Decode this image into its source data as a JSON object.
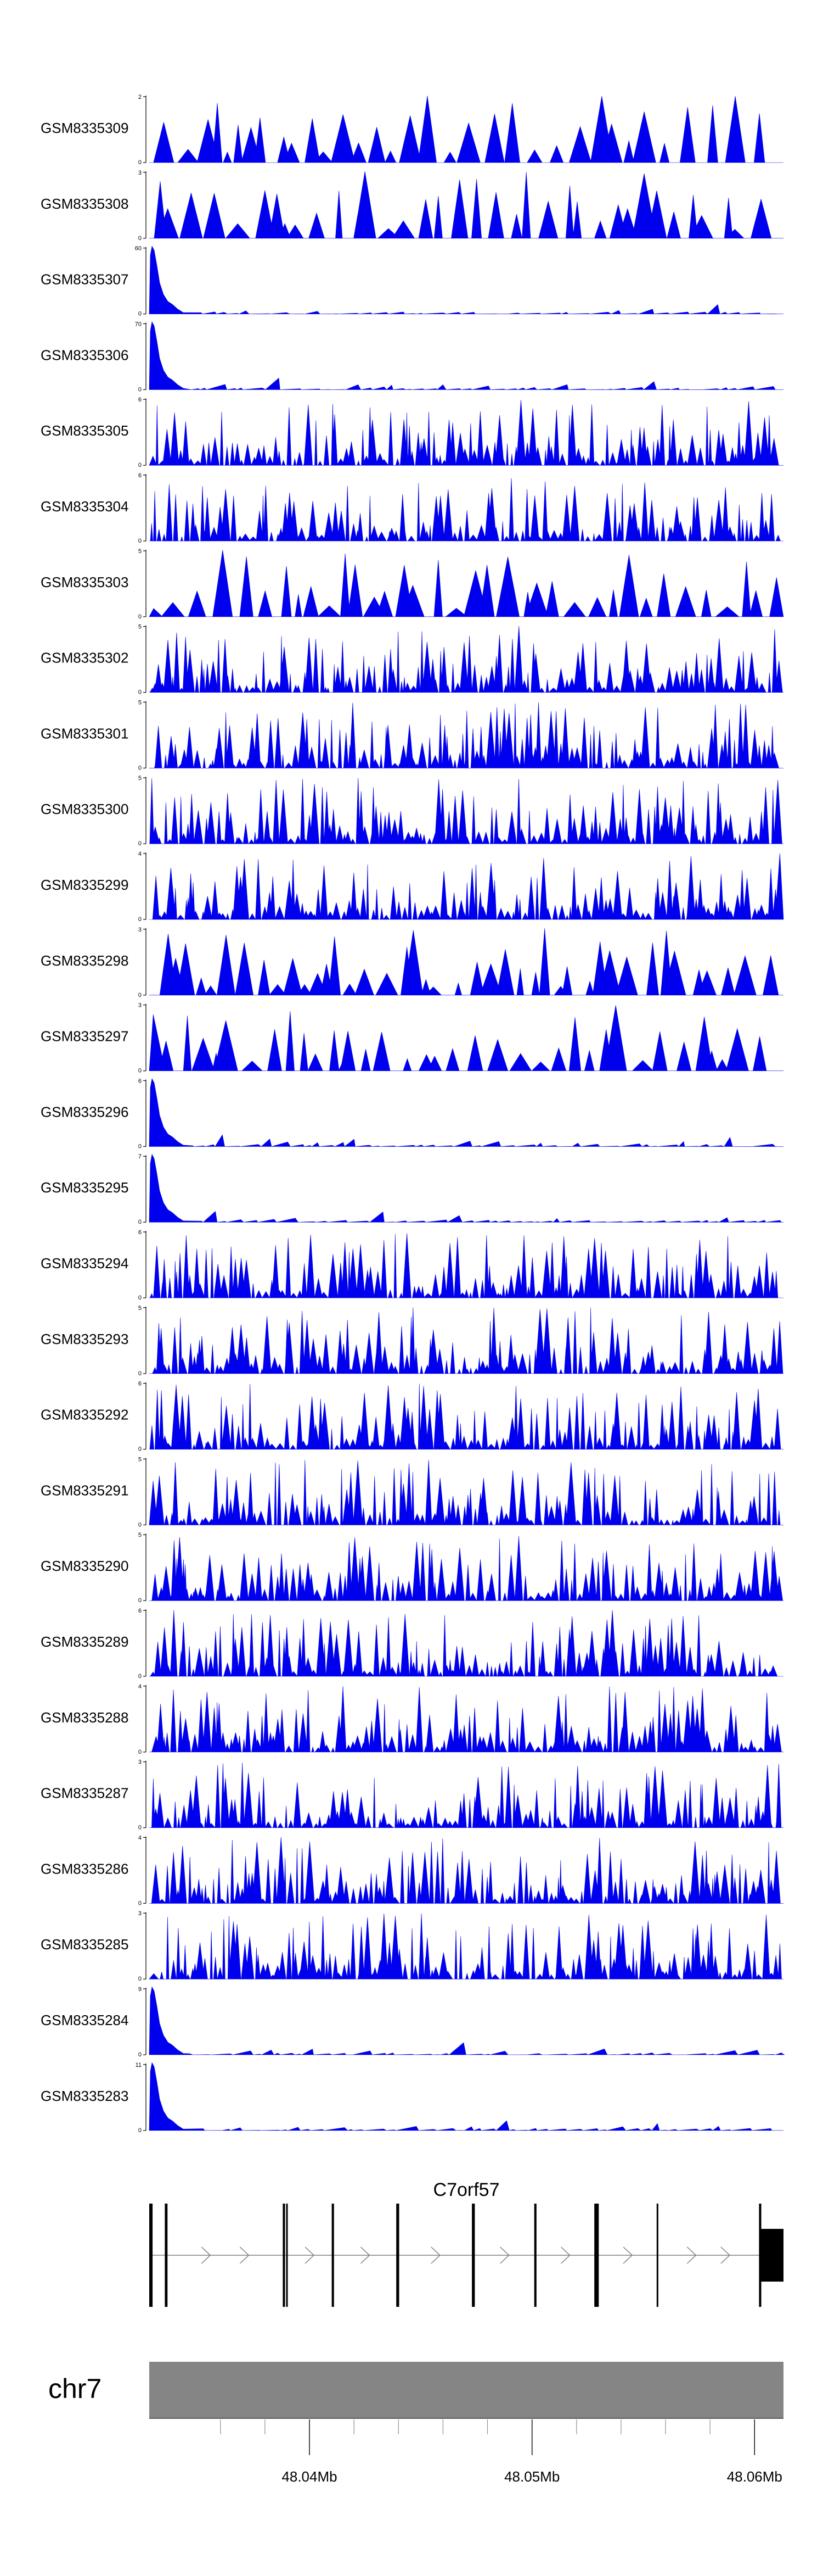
{
  "chart_data": {
    "type": "area",
    "title": "",
    "colors": {
      "signal": "#0000ee",
      "ideogram": "#858585",
      "axis": "#000000"
    },
    "tracks": [
      {
        "name": "GSM8335309",
        "ymax": 2,
        "ymin": 0,
        "pattern": "sparse"
      },
      {
        "name": "GSM8335308",
        "ymax": 3,
        "ymin": 0,
        "pattern": "sparse"
      },
      {
        "name": "GSM8335307",
        "ymax": 60,
        "ymin": 0,
        "pattern": "promoter"
      },
      {
        "name": "GSM8335306",
        "ymax": 70,
        "ymin": 0,
        "pattern": "promoter"
      },
      {
        "name": "GSM8335305",
        "ymax": 6,
        "ymin": 0,
        "pattern": "dense"
      },
      {
        "name": "GSM8335304",
        "ymax": 6,
        "ymin": 0,
        "pattern": "dense"
      },
      {
        "name": "GSM8335303",
        "ymax": 5,
        "ymin": 0,
        "pattern": "sparse"
      },
      {
        "name": "GSM8335302",
        "ymax": 5,
        "ymin": 0,
        "pattern": "dense"
      },
      {
        "name": "GSM8335301",
        "ymax": 5,
        "ymin": 0,
        "pattern": "dense"
      },
      {
        "name": "GSM8335300",
        "ymax": 5,
        "ymin": 0,
        "pattern": "dense"
      },
      {
        "name": "GSM8335299",
        "ymax": 4,
        "ymin": 0,
        "pattern": "dense"
      },
      {
        "name": "GSM8335298",
        "ymax": 3,
        "ymin": 0,
        "pattern": "sparse"
      },
      {
        "name": "GSM8335297",
        "ymax": 3,
        "ymin": 0,
        "pattern": "sparse"
      },
      {
        "name": "GSM8335296",
        "ymax": 6,
        "ymin": 0,
        "pattern": "promoter"
      },
      {
        "name": "GSM8335295",
        "ymax": 7,
        "ymin": 0,
        "pattern": "promoter"
      },
      {
        "name": "GSM8335294",
        "ymax": 6,
        "ymin": 0,
        "pattern": "dense"
      },
      {
        "name": "GSM8335293",
        "ymax": 5,
        "ymin": 0,
        "pattern": "dense"
      },
      {
        "name": "GSM8335292",
        "ymax": 6,
        "ymin": 0,
        "pattern": "dense"
      },
      {
        "name": "GSM8335291",
        "ymax": 5,
        "ymin": 0,
        "pattern": "dense"
      },
      {
        "name": "GSM8335290",
        "ymax": 5,
        "ymin": 0,
        "pattern": "dense"
      },
      {
        "name": "GSM8335289",
        "ymax": 6,
        "ymin": 0,
        "pattern": "dense"
      },
      {
        "name": "GSM8335288",
        "ymax": 4,
        "ymin": 0,
        "pattern": "dense"
      },
      {
        "name": "GSM8335287",
        "ymax": 3,
        "ymin": 0,
        "pattern": "dense"
      },
      {
        "name": "GSM8335286",
        "ymax": 4,
        "ymin": 0,
        "pattern": "dense"
      },
      {
        "name": "GSM8335285",
        "ymax": 3,
        "ymin": 0,
        "pattern": "dense"
      },
      {
        "name": "GSM8335284",
        "ymax": 9,
        "ymin": 0,
        "pattern": "promoter"
      },
      {
        "name": "GSM8335283",
        "ymax": 11,
        "ymin": 0,
        "pattern": "promoter"
      }
    ],
    "gene": {
      "name": "C7orf57",
      "strand": "+",
      "exons": [
        {
          "start": 48032800,
          "end": 48032950
        },
        {
          "start": 48033500,
          "end": 48033620
        },
        {
          "start": 48038800,
          "end": 48038900
        },
        {
          "start": 48038950,
          "end": 48039000
        },
        {
          "start": 48041000,
          "end": 48041100
        },
        {
          "start": 48043900,
          "end": 48044030
        },
        {
          "start": 48047300,
          "end": 48047430
        },
        {
          "start": 48050100,
          "end": 48050200
        },
        {
          "start": 48052800,
          "end": 48053000
        },
        {
          "start": 48055600,
          "end": 48055650
        },
        {
          "start": 48060200,
          "end": 48060300
        },
        {
          "start": 48060300,
          "end": 48061300
        }
      ]
    },
    "chromosome": "chr7",
    "x_range": [
      48032800,
      48061300
    ],
    "x_ticks": [
      48036000,
      48038000,
      48040000,
      48042000,
      48044000,
      48046000,
      48048000,
      48050000,
      48052000,
      48054000,
      48056000,
      48058000,
      48060000
    ],
    "x_tick_labels": [
      {
        "value": 48040000,
        "label": "48.04Mb"
      },
      {
        "value": 48050000,
        "label": "48.05Mb"
      },
      {
        "value": 48060000,
        "label": "48.06Mb"
      }
    ]
  }
}
